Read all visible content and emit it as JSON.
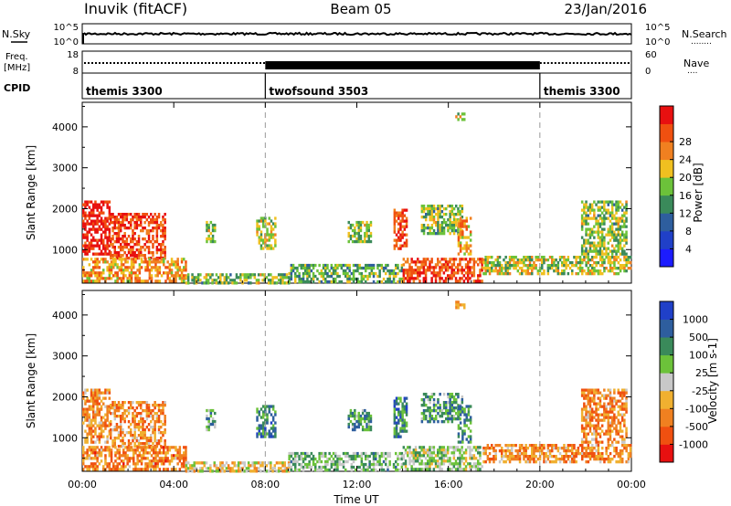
{
  "header": {
    "station": "Inuvik (fitACF)",
    "beam": "Beam 05",
    "date": "23/Jan/2016"
  },
  "noise_panel": {
    "left_label": "N.Sky",
    "right_label": "N.Search",
    "right_dots": "........",
    "left_ticks": [
      "10^5",
      "10^0"
    ],
    "right_ticks": [
      "10^5",
      "10^0"
    ]
  },
  "freq_panel": {
    "left_label_1": "Freq.",
    "left_label_2": "[MHz]",
    "right_label": "Nave",
    "right_dots": "....",
    "left_ticks": [
      "18",
      "8"
    ],
    "right_ticks": [
      "60",
      "0"
    ]
  },
  "cpid_panel": {
    "label": "CPID",
    "segments": [
      {
        "name": "themis 3300",
        "start_h": 0,
        "end_h": 8
      },
      {
        "name": "twofsound 3503",
        "start_h": 8,
        "end_h": 20
      },
      {
        "name": "themis 3300",
        "start_h": 20,
        "end_h": 24
      }
    ]
  },
  "colors": {
    "power": [
      "#1c1cff",
      "#2040c8",
      "#2e5e9e",
      "#3a8a5a",
      "#6cc23a",
      "#f0c020",
      "#f08020",
      "#f05010",
      "#e81010"
    ],
    "velocity": [
      "#e81010",
      "#f05010",
      "#f08020",
      "#f0b030",
      "#c8c8c8",
      "#6cc23a",
      "#3a8a5a",
      "#2e5e9e",
      "#2040c8"
    ]
  },
  "chart_data": [
    {
      "type": "heatmap",
      "panel": "power",
      "ylabel": "Slant Range [km]",
      "xlabel": "",
      "xlim_hours": [
        0,
        24
      ],
      "ylim": [
        180,
        4600
      ],
      "yticks": [
        1000,
        2000,
        3000,
        4000
      ],
      "colorbar_label": "Power [dB]",
      "colorbar_ticks": [
        "4",
        "8",
        "12",
        "16",
        "20",
        "24",
        "28"
      ],
      "echo_regions": [
        {
          "t0": 0.0,
          "t1": 1.2,
          "r0": 900,
          "r1": 2200,
          "level": 0.95
        },
        {
          "t0": 1.2,
          "t1": 3.6,
          "r0": 800,
          "r1": 1900,
          "level": 0.85
        },
        {
          "t0": 0.0,
          "t1": 4.5,
          "r0": 250,
          "r1": 800,
          "level": 0.7
        },
        {
          "t0": 4.5,
          "t1": 9.0,
          "r0": 200,
          "r1": 420,
          "level": 0.5
        },
        {
          "t0": 5.4,
          "t1": 5.8,
          "r0": 1200,
          "r1": 1700,
          "level": 0.5
        },
        {
          "t0": 7.6,
          "t1": 8.4,
          "r0": 1000,
          "r1": 1800,
          "level": 0.55
        },
        {
          "t0": 9.0,
          "t1": 14.0,
          "r0": 200,
          "r1": 650,
          "level": 0.45
        },
        {
          "t0": 11.6,
          "t1": 12.6,
          "r0": 1200,
          "r1": 1700,
          "level": 0.5
        },
        {
          "t0": 13.6,
          "t1": 14.2,
          "r0": 1000,
          "r1": 2000,
          "level": 0.85
        },
        {
          "t0": 14.8,
          "t1": 16.6,
          "r0": 1400,
          "r1": 2100,
          "level": 0.5
        },
        {
          "t0": 16.4,
          "t1": 17.0,
          "r0": 900,
          "r1": 1800,
          "level": 0.7
        },
        {
          "t0": 14.0,
          "t1": 17.5,
          "r0": 250,
          "r1": 800,
          "level": 0.85
        },
        {
          "t0": 17.5,
          "t1": 24.0,
          "r0": 400,
          "r1": 850,
          "level": 0.55
        },
        {
          "t0": 21.8,
          "t1": 23.8,
          "r0": 900,
          "r1": 2200,
          "level": 0.5
        },
        {
          "t0": 16.3,
          "t1": 16.7,
          "r0": 4150,
          "r1": 4350,
          "level": 0.55
        }
      ]
    },
    {
      "type": "heatmap",
      "panel": "velocity",
      "ylabel": "Slant Range [km]",
      "xlabel": "Time UT",
      "xlim_hours": [
        0,
        24
      ],
      "ylim": [
        180,
        4600
      ],
      "yticks": [
        1000,
        2000,
        3000,
        4000
      ],
      "xticks": [
        "00:00",
        "04:00",
        "08:00",
        "12:00",
        "16:00",
        "20:00",
        "00:00"
      ],
      "colorbar_label": "Velocity [m s-1]",
      "colorbar_ticks": [
        "-1000",
        "-500",
        "-100",
        "-25",
        "25",
        "100",
        "500",
        "1000"
      ],
      "echo_regions": [
        {
          "t0": 0.0,
          "t1": 1.2,
          "r0": 900,
          "r1": 2200,
          "level": 0.3
        },
        {
          "t0": 1.2,
          "t1": 3.6,
          "r0": 800,
          "r1": 1900,
          "level": 0.3
        },
        {
          "t0": 0.0,
          "t1": 4.5,
          "r0": 250,
          "r1": 800,
          "level": 0.28
        },
        {
          "t0": 4.5,
          "t1": 9.0,
          "r0": 200,
          "r1": 420,
          "level": 0.45
        },
        {
          "t0": 5.4,
          "t1": 5.8,
          "r0": 1200,
          "r1": 1700,
          "level": 0.65
        },
        {
          "t0": 7.6,
          "t1": 8.4,
          "r0": 1000,
          "r1": 1800,
          "level": 0.75
        },
        {
          "t0": 9.0,
          "t1": 14.0,
          "r0": 200,
          "r1": 650,
          "level": 0.62
        },
        {
          "t0": 11.6,
          "t1": 12.6,
          "r0": 1200,
          "r1": 1700,
          "level": 0.7
        },
        {
          "t0": 13.6,
          "t1": 14.2,
          "r0": 1000,
          "r1": 2000,
          "level": 0.75
        },
        {
          "t0": 14.8,
          "t1": 16.6,
          "r0": 1400,
          "r1": 2100,
          "level": 0.7
        },
        {
          "t0": 16.4,
          "t1": 17.0,
          "r0": 900,
          "r1": 1800,
          "level": 0.72
        },
        {
          "t0": 14.0,
          "t1": 17.5,
          "r0": 250,
          "r1": 800,
          "level": 0.55
        },
        {
          "t0": 17.5,
          "t1": 24.0,
          "r0": 400,
          "r1": 850,
          "level": 0.3
        },
        {
          "t0": 21.8,
          "t1": 23.8,
          "r0": 900,
          "r1": 2200,
          "level": 0.3
        },
        {
          "t0": 16.3,
          "t1": 16.7,
          "r0": 4150,
          "r1": 4350,
          "level": 0.35
        }
      ]
    }
  ]
}
